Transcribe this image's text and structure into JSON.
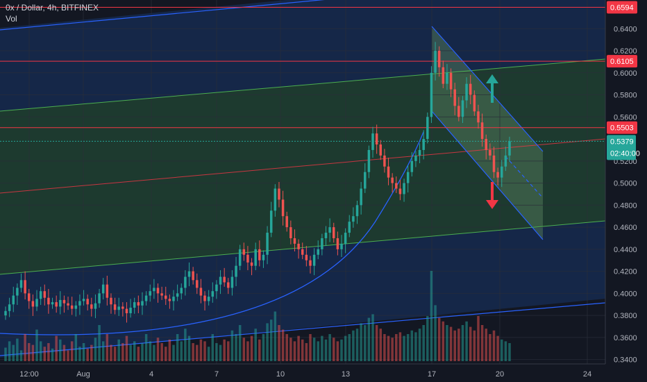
{
  "header": {
    "title": "0x / Dollar, 4h, BITFINEX",
    "volume_label": "Vol"
  },
  "colors": {
    "background": "#131722",
    "up": "#26a69a",
    "down": "#ef5350",
    "grid": "#2a2e39",
    "axis_text": "#b2b5be",
    "price_line": "#26a69a",
    "level_line": "#f23645",
    "channel": "#2962ff",
    "green_channel": "#4caf50",
    "arrow_up": "#26a69a",
    "arrow_down": "#f23645"
  },
  "chart_data": {
    "type": "candlestick",
    "symbol": "0x / Dollar",
    "interval": "4h",
    "exchange": "BITFINEX",
    "ylim": [
      0.336,
      0.666
    ],
    "y_ticks": [
      "0.6400",
      "0.6200",
      "0.6000",
      "0.5800",
      "0.5600",
      "0.5200",
      "0.5000",
      "0.4800",
      "0.4600",
      "0.4400",
      "0.4200",
      "0.4000",
      "0.3800",
      "0.3600",
      "0.3400"
    ],
    "x_ticks": [
      "12:00",
      "Aug",
      "4",
      "7",
      "10",
      "13",
      "17",
      "20",
      "24"
    ],
    "current_price": {
      "value": "0.5379",
      "countdown": "02:40:00"
    },
    "levels": [
      {
        "value": 0.6594,
        "label": "0.6594"
      },
      {
        "value": 0.6105,
        "label": "0.6105"
      },
      {
        "value": 0.5503,
        "label": "0.5503"
      }
    ],
    "closes": [
      0.384,
      0.39,
      0.398,
      0.405,
      0.412,
      0.4,
      0.393,
      0.388,
      0.395,
      0.402,
      0.396,
      0.39,
      0.392,
      0.388,
      0.394,
      0.391,
      0.389,
      0.386,
      0.389,
      0.393,
      0.395,
      0.39,
      0.386,
      0.391,
      0.4,
      0.408,
      0.396,
      0.39,
      0.385,
      0.388,
      0.386,
      0.382,
      0.387,
      0.392,
      0.389,
      0.393,
      0.398,
      0.402,
      0.405,
      0.4,
      0.398,
      0.395,
      0.393,
      0.397,
      0.4,
      0.405,
      0.415,
      0.42,
      0.412,
      0.405,
      0.398,
      0.393,
      0.397,
      0.402,
      0.408,
      0.415,
      0.41,
      0.405,
      0.415,
      0.425,
      0.44,
      0.435,
      0.428,
      0.425,
      0.44,
      0.43,
      0.435,
      0.455,
      0.475,
      0.495,
      0.485,
      0.47,
      0.46,
      0.45,
      0.445,
      0.44,
      0.435,
      0.43,
      0.425,
      0.435,
      0.44,
      0.45,
      0.455,
      0.46,
      0.45,
      0.44,
      0.445,
      0.455,
      0.465,
      0.47,
      0.48,
      0.495,
      0.51,
      0.53,
      0.545,
      0.535,
      0.525,
      0.515,
      0.505,
      0.5,
      0.495,
      0.49,
      0.5,
      0.51,
      0.52,
      0.525,
      0.53,
      0.54,
      0.56,
      0.6,
      0.62,
      0.605,
      0.59,
      0.6,
      0.585,
      0.57,
      0.56,
      0.575,
      0.59,
      0.58,
      0.565,
      0.555,
      0.54,
      0.53,
      0.525,
      0.51,
      0.505,
      0.515,
      0.525,
      0.538
    ],
    "volumes": [
      0.15,
      0.22,
      0.18,
      0.25,
      0.12,
      0.3,
      0.2,
      0.18,
      0.35,
      0.22,
      0.16,
      0.2,
      0.14,
      0.28,
      0.24,
      0.18,
      0.12,
      0.22,
      0.3,
      0.16,
      0.2,
      0.14,
      0.18,
      0.26,
      0.4,
      0.22,
      0.3,
      0.18,
      0.16,
      0.24,
      0.2,
      0.28,
      0.18,
      0.22,
      0.16,
      0.2,
      0.3,
      0.22,
      0.18,
      0.26,
      0.2,
      0.16,
      0.24,
      0.18,
      0.3,
      0.22,
      0.36,
      0.28,
      0.2,
      0.18,
      0.24,
      0.22,
      0.16,
      0.3,
      0.2,
      0.18,
      0.24,
      0.22,
      0.34,
      0.3,
      0.4,
      0.26,
      0.22,
      0.28,
      0.36,
      0.24,
      0.3,
      0.42,
      0.46,
      0.55,
      0.4,
      0.35,
      0.3,
      0.26,
      0.22,
      0.28,
      0.24,
      0.2,
      0.3,
      0.26,
      0.22,
      0.28,
      0.24,
      0.3,
      0.26,
      0.22,
      0.24,
      0.28,
      0.3,
      0.34,
      0.36,
      0.42,
      0.4,
      0.48,
      0.52,
      0.4,
      0.36,
      0.3,
      0.28,
      0.26,
      0.3,
      0.32,
      0.28,
      0.3,
      0.34,
      0.32,
      0.36,
      0.4,
      0.5,
      1.0,
      0.62,
      0.48,
      0.44,
      0.4,
      0.38,
      0.34,
      0.36,
      0.4,
      0.44,
      0.38,
      0.34,
      0.5,
      0.4,
      0.36,
      0.3,
      0.34,
      0.28,
      0.24,
      0.22,
      0.2
    ]
  }
}
